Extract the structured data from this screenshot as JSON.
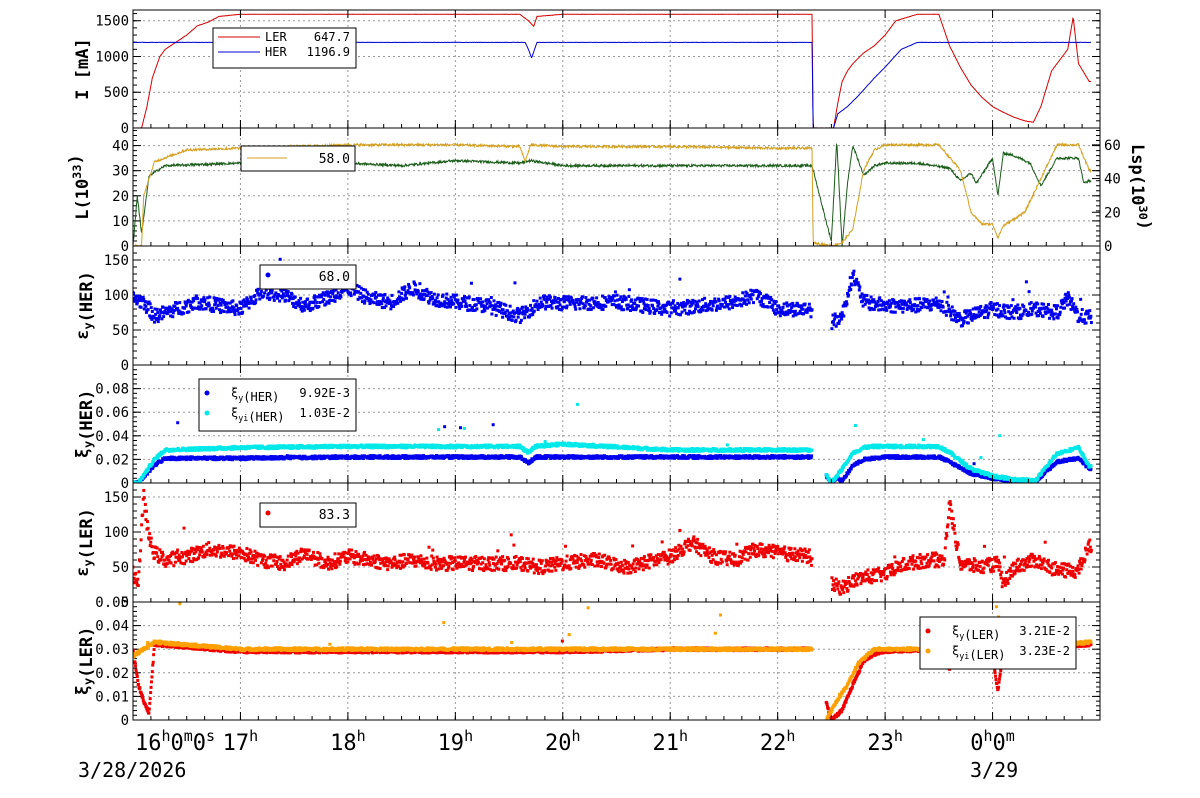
{
  "chart_data": [
    {
      "type": "line",
      "ylabel": "I [mA]",
      "ylim": [
        0,
        1650
      ],
      "yticks": [
        "0",
        "500",
        "1000",
        "1500"
      ],
      "ytick_values": [
        0,
        500,
        1000,
        1500
      ],
      "series": [
        {
          "name": "LER",
          "legend_value": "647.7",
          "color": "#d40000",
          "x": [
            16.0,
            16.08,
            16.13,
            16.18,
            16.25,
            16.3,
            16.4,
            16.5,
            16.6,
            16.7,
            16.8,
            17.0,
            18.0,
            19.0,
            19.6,
            19.68,
            19.73,
            19.76,
            20.0,
            21.0,
            22.0,
            22.32,
            22.33,
            22.52,
            22.56,
            22.6,
            22.65,
            22.7,
            22.8,
            22.9,
            23.0,
            23.05,
            23.1,
            23.3,
            23.5,
            23.6,
            23.7,
            23.8,
            23.9,
            24.0,
            24.1,
            24.2,
            24.3,
            24.38,
            24.45,
            24.55,
            24.7,
            24.75,
            24.8,
            24.9
          ],
          "y": [
            0,
            0,
            300,
            700,
            1000,
            1100,
            1200,
            1300,
            1430,
            1480,
            1560,
            1590,
            1590,
            1590,
            1590,
            1500,
            1420,
            1560,
            1590,
            1590,
            1590,
            1590,
            0,
            0,
            350,
            650,
            800,
            900,
            1050,
            1150,
            1300,
            1400,
            1500,
            1590,
            1590,
            1150,
            850,
            600,
            430,
            300,
            220,
            150,
            100,
            80,
            300,
            800,
            1100,
            1550,
            900,
            650
          ]
        },
        {
          "name": "HER",
          "legend_value": "1196.9",
          "color": "#0000d4",
          "x": [
            16.0,
            16.08,
            16.13,
            16.25,
            17.0,
            19.65,
            19.68,
            19.71,
            19.76,
            20.0,
            22.32,
            22.33,
            22.52,
            22.56,
            22.65,
            22.75,
            22.9,
            23.0,
            23.15,
            23.3,
            24.9
          ],
          "y": [
            1196.9,
            1196.9,
            1196.9,
            1196.9,
            1196.9,
            1196.9,
            1100,
            980,
            1196.9,
            1196.9,
            1196.9,
            0,
            0,
            200,
            300,
            450,
            700,
            850,
            1100,
            1196.9,
            1196.9
          ]
        }
      ]
    },
    {
      "type": "line",
      "ylabel": "L(10^33)",
      "ylim": [
        0,
        47
      ],
      "yticks": [
        "0",
        "10",
        "20",
        "30",
        "40"
      ],
      "ytick_values": [
        0,
        10,
        20,
        30,
        40
      ],
      "y2label": "Lsp(10^30)",
      "y2lim": [
        0,
        70
      ],
      "y2ticks": [
        "0",
        "20",
        "40",
        "60"
      ],
      "y2tick_values": [
        0,
        20,
        40,
        60
      ],
      "legend_value": "58.0",
      "series": [
        {
          "name": "L",
          "axis": "left",
          "color": "#1a5c1a",
          "x": [
            16.0,
            16.04,
            16.08,
            16.15,
            16.3,
            17.0,
            18.0,
            18.5,
            19.0,
            19.6,
            19.7,
            20.0,
            21.0,
            22.0,
            22.32,
            22.45,
            22.5,
            22.55,
            22.6,
            22.65,
            22.7,
            22.8,
            22.9,
            23.0,
            23.3,
            23.6,
            23.7,
            23.8,
            23.85,
            24.0,
            24.05,
            24.1,
            24.2,
            24.35,
            24.45,
            24.6,
            24.8,
            24.85,
            24.9
          ],
          "y": [
            0,
            20,
            5,
            28,
            32,
            33,
            33,
            32,
            34,
            33,
            34,
            32,
            32,
            32,
            32,
            10,
            2,
            42,
            0,
            25,
            40,
            28,
            32,
            33,
            33,
            31,
            26,
            29,
            25,
            35,
            20,
            37,
            36,
            33,
            24,
            35,
            35,
            25,
            26
          ]
        },
        {
          "name": "Lsp",
          "axis": "right",
          "color": "#d4a020",
          "x": [
            16.0,
            16.08,
            16.1,
            16.2,
            16.5,
            17.0,
            18.0,
            19.0,
            19.6,
            19.65,
            19.7,
            20.0,
            21.0,
            22.0,
            22.32,
            22.33,
            22.5,
            22.6,
            22.7,
            22.8,
            22.9,
            23.0,
            23.5,
            23.7,
            23.8,
            23.9,
            24.0,
            24.05,
            24.1,
            24.3,
            24.45,
            24.6,
            24.8,
            24.9
          ],
          "y": [
            0,
            0,
            30,
            50,
            57,
            58,
            60,
            60,
            59,
            50,
            60,
            59,
            59,
            58,
            58,
            2,
            0,
            2,
            10,
            45,
            57,
            60,
            60,
            45,
            20,
            13,
            13,
            5,
            12,
            20,
            40,
            60,
            60,
            45
          ]
        }
      ]
    },
    {
      "type": "scatter",
      "ylabel": "εy(HER)",
      "ylim": [
        0,
        170
      ],
      "yticks": [
        "0",
        "50",
        "100",
        "150"
      ],
      "ytick_values": [
        0,
        50,
        100,
        150
      ],
      "series": [
        {
          "name": "",
          "legend_value": "68.0",
          "color": "#0000ee",
          "x": [
            16.0,
            16.1,
            16.2,
            16.3,
            16.4,
            16.6,
            16.8,
            17.0,
            17.2,
            17.4,
            17.6,
            17.8,
            18.0,
            18.2,
            18.4,
            18.6,
            18.8,
            19.0,
            19.3,
            19.6,
            19.8,
            20.0,
            20.5,
            21.0,
            21.3,
            21.6,
            21.8,
            22.0,
            22.3,
            22.5,
            22.6,
            22.7,
            22.8,
            23.0,
            23.3,
            23.5,
            23.7,
            23.9,
            24.0,
            24.2,
            24.4,
            24.6,
            24.7,
            24.8,
            24.9
          ],
          "y": [
            95,
            90,
            70,
            75,
            80,
            90,
            85,
            80,
            105,
            100,
            85,
            95,
            110,
            95,
            90,
            110,
            95,
            90,
            85,
            70,
            90,
            88,
            90,
            80,
            85,
            90,
            100,
            80,
            80,
            60,
            70,
            130,
            90,
            85,
            85,
            88,
            65,
            75,
            80,
            75,
            80,
            75,
            95,
            70,
            68
          ]
        }
      ]
    },
    {
      "type": "line",
      "ylabel": "ξy(HER)",
      "ylim": [
        0,
        0.1
      ],
      "yticks": [
        "0",
        "0.02",
        "0.04",
        "0.06",
        "0.08"
      ],
      "ytick_values": [
        0,
        0.02,
        0.04,
        0.06,
        0.08
      ],
      "series": [
        {
          "name": "ξy(HER)",
          "legend_value": "9.92E-3",
          "color": "#0000ee",
          "x": [
            16.0,
            16.05,
            16.2,
            16.3,
            17.0,
            18.0,
            19.0,
            19.6,
            19.68,
            19.75,
            20.0,
            21.0,
            22.0,
            22.32,
            22.5,
            22.55,
            22.6,
            22.65,
            22.7,
            22.8,
            22.9,
            23.0,
            23.5,
            23.6,
            23.8,
            24.0,
            24.2,
            24.4,
            24.6,
            24.8,
            24.9
          ],
          "y": [
            0,
            0,
            0.015,
            0.021,
            0.021,
            0.022,
            0.022,
            0.022,
            0.017,
            0.022,
            0.022,
            0.022,
            0.022,
            0.022,
            0,
            0.005,
            0.002,
            0.008,
            0.015,
            0.02,
            0.021,
            0.022,
            0.022,
            0.018,
            0.008,
            0.004,
            0.002,
            0.001,
            0.018,
            0.021,
            0.012
          ]
        },
        {
          "name": "ξyi(HER)",
          "legend_value": "1.03E-2",
          "color": "#00e8e8",
          "x": [
            16.0,
            16.05,
            16.2,
            16.3,
            17.0,
            18.0,
            19.0,
            19.6,
            19.68,
            19.75,
            20.0,
            21.0,
            22.0,
            22.32,
            22.5,
            22.6,
            22.7,
            22.8,
            22.9,
            23.0,
            23.5,
            23.6,
            23.8,
            24.0,
            24.2,
            24.4,
            24.6,
            24.8,
            24.9
          ],
          "y": [
            0,
            0,
            0.02,
            0.028,
            0.03,
            0.031,
            0.031,
            0.031,
            0.026,
            0.031,
            0.033,
            0.028,
            0.028,
            0.028,
            0,
            0.012,
            0.025,
            0.03,
            0.031,
            0.031,
            0.031,
            0.026,
            0.012,
            0.006,
            0.003,
            0.002,
            0.025,
            0.03,
            0.014
          ]
        }
      ]
    },
    {
      "type": "scatter",
      "ylabel": "εy(LER)",
      "ylim": [
        0,
        170
      ],
      "yticks": [
        "0",
        "50",
        "100",
        "150"
      ],
      "ytick_values": [
        0,
        50,
        100,
        150
      ],
      "series": [
        {
          "name": "",
          "legend_value": "83.3",
          "color": "#ee0000",
          "x": [
            16.0,
            16.05,
            16.1,
            16.15,
            16.2,
            16.3,
            16.5,
            16.7,
            17.0,
            17.2,
            17.4,
            17.6,
            17.8,
            18.0,
            18.2,
            18.4,
            18.6,
            18.8,
            19.0,
            19.3,
            19.6,
            19.8,
            20.0,
            20.3,
            20.6,
            21.0,
            21.2,
            21.4,
            21.6,
            21.8,
            22.0,
            22.3,
            22.5,
            22.6,
            22.7,
            22.8,
            23.0,
            23.2,
            23.4,
            23.55,
            23.6,
            23.7,
            23.9,
            24.05,
            24.1,
            24.2,
            24.4,
            24.6,
            24.8,
            24.9
          ],
          "y": [
            40,
            30,
            150,
            90,
            70,
            60,
            65,
            75,
            70,
            60,
            55,
            70,
            55,
            65,
            60,
            55,
            60,
            55,
            55,
            55,
            55,
            50,
            55,
            60,
            50,
            65,
            85,
            65,
            60,
            75,
            70,
            65,
            25,
            20,
            30,
            35,
            40,
            55,
            60,
            60,
            140,
            55,
            50,
            55,
            25,
            50,
            60,
            45,
            45,
            80
          ]
        }
      ]
    },
    {
      "type": "line",
      "ylabel": "ξy(LER)",
      "ylim": [
        0,
        0.05
      ],
      "yticks": [
        "0",
        "0.01",
        "0.02",
        "0.03",
        "0.04",
        "0.05"
      ],
      "ytick_values": [
        0,
        0.01,
        0.02,
        0.03,
        0.04,
        0.05
      ],
      "series": [
        {
          "name": "ξy(LER)",
          "legend_value": "3.21E-2",
          "color": "#ee0000",
          "x": [
            16.0,
            16.05,
            16.1,
            16.15,
            16.2,
            17.0,
            18.0,
            19.0,
            20.0,
            21.0,
            22.0,
            22.32,
            22.5,
            22.6,
            22.7,
            22.8,
            22.9,
            23.0,
            23.5,
            23.55,
            23.6,
            23.7,
            24.0,
            24.05,
            24.1,
            24.2,
            24.4,
            24.6,
            24.9
          ],
          "y": [
            0.03,
            0.015,
            0.008,
            0.003,
            0.032,
            0.029,
            0.029,
            0.029,
            0.029,
            0.03,
            0.03,
            0.03,
            0,
            0.004,
            0.015,
            0.025,
            0.028,
            0.029,
            0.03,
            0.025,
            0.022,
            0.03,
            0.027,
            0.012,
            0.03,
            0.028,
            0.031,
            0.031,
            0.032
          ]
        },
        {
          "name": "ξyi(LER)",
          "legend_value": "3.23E-2",
          "color": "#ffa000",
          "x": [
            16.0,
            16.1,
            16.2,
            17.0,
            18.0,
            19.0,
            20.0,
            21.0,
            22.0,
            22.32,
            22.45,
            22.55,
            22.65,
            22.75,
            22.9,
            23.0,
            23.5,
            24.0,
            24.5,
            24.9
          ],
          "y": [
            0.027,
            0.03,
            0.033,
            0.03,
            0.03,
            0.03,
            0.03,
            0.03,
            0.03,
            0.03,
            0,
            0.008,
            0.015,
            0.024,
            0.03,
            0.03,
            0.03,
            0.031,
            0.031,
            0.033
          ]
        }
      ]
    }
  ],
  "x_axis": {
    "range": [
      16.0,
      25.0
    ],
    "tick_values": [
      16,
      17,
      18,
      19,
      20,
      21,
      22,
      23,
      24
    ],
    "tick_labels": [
      {
        "h": "16",
        "suffix": "0",
        "sec": "0"
      },
      {
        "h": "17"
      },
      {
        "h": "18"
      },
      {
        "h": "19"
      },
      {
        "h": "20"
      },
      {
        "h": "21"
      },
      {
        "h": "22"
      },
      {
        "h": "23"
      },
      {
        "h": "0",
        "suffix": "0"
      }
    ],
    "date_left": "3/28/2026",
    "date_right": "3/29"
  }
}
